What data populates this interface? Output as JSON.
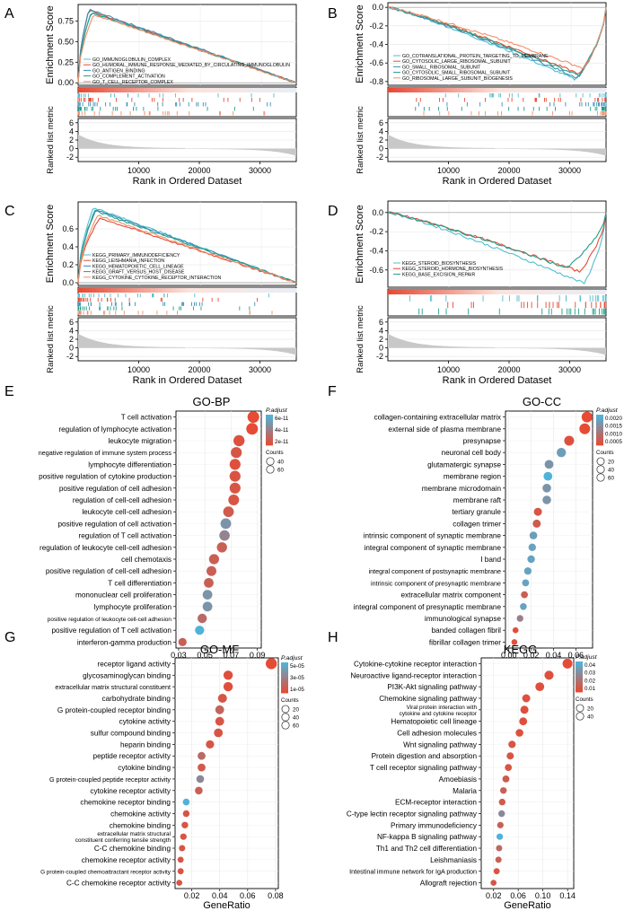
{
  "figure": {
    "panels": [
      "A",
      "B",
      "C",
      "D",
      "E",
      "F",
      "G",
      "H"
    ]
  },
  "gsea_axes": {
    "enrichment_label": "Enrichment Score",
    "ranked_label": "Ranked list metric",
    "x_label": "Rank in Ordered Dataset",
    "x_ticks": [
      "10000",
      "20000",
      "30000"
    ],
    "ranked_ticks": [
      "6",
      "4",
      "2",
      "0",
      "-2"
    ]
  },
  "colors": {
    "palette": [
      "#4fbfd0",
      "#e64b35",
      "#3a8fb7",
      "#1f9e89",
      "#f28e6b"
    ],
    "dot_low": "#e64b35",
    "dot_high": "#4fb3d9",
    "ranked_fill": "#c8c8c8"
  },
  "chart_data": [
    {
      "panel": "A",
      "type": "line",
      "title": "",
      "ylabel": "Enrichment Score",
      "xlabel": "Rank in Ordered Dataset",
      "xlim": [
        0,
        36000
      ],
      "ylim": [
        -0.03,
        0.95
      ],
      "y_ticks": [
        "0.00",
        "0.25",
        "0.50",
        "0.75"
      ],
      "series": [
        {
          "name": "GO_IMMUNOGLOBULIN_COMPLEX",
          "color": "#4fbfd0",
          "peak": 0.86,
          "peak_at": 0.06,
          "end": 0.0
        },
        {
          "name": "GO_HUMORAL_IMMUNE_RESPONSE_MEDIATED_BY_CIRCULATING_IMMUNOGLOBULIN",
          "color": "#e64b35",
          "peak": 0.88,
          "peak_at": 0.05,
          "end": 0.0
        },
        {
          "name": "GO_ANTIGEN_BINDING",
          "color": "#3a8fb7",
          "peak": 0.89,
          "peak_at": 0.05,
          "end": 0.0
        },
        {
          "name": "GO_COMPLEMENT_ACTIVATION",
          "color": "#1f9e89",
          "peak": 0.85,
          "peak_at": 0.06,
          "end": 0.0
        },
        {
          "name": "GO_T_CELL_RECEPTOR_COMPLEX",
          "color": "#f28e6b",
          "peak": 0.83,
          "peak_at": 0.07,
          "end": 0.0
        }
      ]
    },
    {
      "panel": "B",
      "type": "line",
      "ylabel": "Enrichment Score",
      "xlabel": "Rank in Ordered Dataset",
      "xlim": [
        0,
        36000
      ],
      "ylim": [
        -0.84,
        0.05
      ],
      "y_ticks": [
        "0.0",
        "-0.2",
        "-0.4",
        "-0.6",
        "-0.8"
      ],
      "series": [
        {
          "name": "GO_COTRANSLATIONAL_PROTEIN_TARGETING_TO_MEMBRANE",
          "color": "#4fbfd0",
          "peak": -0.78,
          "peak_at": 0.86,
          "end": 0.0
        },
        {
          "name": "GO_CYTOSOLIC_LARGE_RIBOSOMAL_SUBUNIT",
          "color": "#e64b35",
          "peak": -0.72,
          "peak_at": 0.88,
          "end": 0.0
        },
        {
          "name": "GO_SMALL_RIBOSOMAL_SUBUNIT",
          "color": "#3a8fb7",
          "peak": -0.76,
          "peak_at": 0.87,
          "end": 0.0
        },
        {
          "name": "GO_CYTOSOLIC_SMALL_RIBOSOMAL_SUBUNIT",
          "color": "#1f9e89",
          "peak": -0.74,
          "peak_at": 0.88,
          "end": 0.0
        },
        {
          "name": "GO_RIBOSOMAL_LARGE_SUBUNIT_BIOGENESIS",
          "color": "#f28e6b",
          "peak": -0.66,
          "peak_at": 0.9,
          "end": 0.0
        }
      ]
    },
    {
      "panel": "C",
      "type": "line",
      "ylabel": "Enrichment Score",
      "xlabel": "Rank in Ordered Dataset",
      "xlim": [
        0,
        36000
      ],
      "ylim": [
        -0.03,
        0.9
      ],
      "y_ticks": [
        "0.0",
        "0.2",
        "0.4",
        "0.6"
      ],
      "series": [
        {
          "name": "KEGG_PRIMARY_IMMUNODEFICIENCY",
          "color": "#4fbfd0",
          "peak": 0.84,
          "peak_at": 0.07,
          "end": 0.0
        },
        {
          "name": "KEGG_LEISHMANIA_INFECTION",
          "color": "#e64b35",
          "peak": 0.72,
          "peak_at": 0.1,
          "end": 0.0
        },
        {
          "name": "KEGG_HEMATOPOIETIC_CELL_LINEAGE",
          "color": "#3a8fb7",
          "peak": 0.82,
          "peak_at": 0.08,
          "end": 0.0
        },
        {
          "name": "KEGG_GRAFT_VERSUS_HOST_DISEASE",
          "color": "#1f9e89",
          "peak": 0.8,
          "peak_at": 0.08,
          "end": 0.0
        },
        {
          "name": "KEGG_CYTOKINE_CYTOKINE_RECEPTOR_INTERACTION",
          "color": "#f28e6b",
          "peak": 0.75,
          "peak_at": 0.09,
          "end": 0.0
        }
      ]
    },
    {
      "panel": "D",
      "type": "line",
      "ylabel": "Enrichment Score",
      "xlabel": "Rank in Ordered Dataset",
      "xlim": [
        0,
        36000
      ],
      "ylim": [
        -0.78,
        0.12
      ],
      "y_ticks": [
        "0.0",
        "-0.2",
        "-0.4",
        "-0.6"
      ],
      "series": [
        {
          "name": "KEGG_STEROID_BIOSYNTHESIS",
          "color": "#4fbfd0",
          "peak": -0.74,
          "peak_at": 0.9,
          "end": 0.0
        },
        {
          "name": "KEGG_STEROID_HORMONE_BIOSYNTHESIS",
          "color": "#e64b35",
          "peak": -0.62,
          "peak_at": 0.88,
          "end": 0.0
        },
        {
          "name": "KEGG_BASE_EXCISION_REPAIR",
          "color": "#1f9e89",
          "peak": -0.58,
          "peak_at": 0.82,
          "end": 0.0
        }
      ]
    },
    {
      "panel": "E",
      "type": "scatter",
      "title": "GO-BP",
      "xlabel": "GeneRatio",
      "xlim": [
        0.028,
        0.093
      ],
      "x_ticks": [
        "0.03",
        "0.05",
        "0.07",
        "0.09"
      ],
      "x_tick_values": [
        0.03,
        0.05,
        0.07,
        0.09
      ],
      "legend_title": "P.adjust",
      "color_ticks": [
        "6e-11",
        "4e-11",
        "2e-11"
      ],
      "size_title": "Counts",
      "size_ticks": [
        "40",
        "60"
      ],
      "terms": [
        {
          "label": "T cell activation",
          "ratio": 0.087,
          "count": 80,
          "padj": 0.0
        },
        {
          "label": "regulation of lymphocyte activation",
          "ratio": 0.086,
          "count": 78,
          "padj": 0.0
        },
        {
          "label": "leukocyte migration",
          "ratio": 0.076,
          "count": 70,
          "padj": 0.05
        },
        {
          "label": "negative regulation of immune system process",
          "ratio": 0.074,
          "count": 66,
          "padj": 0.1
        },
        {
          "label": "lymphocyte differentiation",
          "ratio": 0.073,
          "count": 66,
          "padj": 0.05
        },
        {
          "label": "positive regulation of cytokine production",
          "ratio": 0.073,
          "count": 66,
          "padj": 0.08
        },
        {
          "label": "positive regulation of cell adhesion",
          "ratio": 0.073,
          "count": 66,
          "padj": 0.1
        },
        {
          "label": "regulation of cell-cell adhesion",
          "ratio": 0.072,
          "count": 65,
          "padj": 0.1
        },
        {
          "label": "leukocyte cell-cell adhesion",
          "ratio": 0.068,
          "count": 62,
          "padj": 0.15
        },
        {
          "label": "positive regulation of cell activation",
          "ratio": 0.066,
          "count": 60,
          "padj": 0.7
        },
        {
          "label": "regulation of T cell activation",
          "ratio": 0.065,
          "count": 58,
          "padj": 0.55
        },
        {
          "label": "regulation of leukocyte cell-cell adhesion",
          "ratio": 0.063,
          "count": 56,
          "padj": 0.2
        },
        {
          "label": "cell chemotaxis",
          "ratio": 0.057,
          "count": 52,
          "padj": 0.2
        },
        {
          "label": "positive regulation of cell-cell adhesion",
          "ratio": 0.055,
          "count": 50,
          "padj": 0.2
        },
        {
          "label": "T cell differentiation",
          "ratio": 0.053,
          "count": 48,
          "padj": 0.2
        },
        {
          "label": "mononuclear cell proliferation",
          "ratio": 0.052,
          "count": 47,
          "padj": 0.7
        },
        {
          "label": "lymphocyte proliferation",
          "ratio": 0.052,
          "count": 47,
          "padj": 0.7
        },
        {
          "label": "positive regulation of leukocyte cell-cell adhesion",
          "ratio": 0.048,
          "count": 42,
          "padj": 0.3
        },
        {
          "label": "positive regulation of T cell activation",
          "ratio": 0.046,
          "count": 40,
          "padj": 1.0
        },
        {
          "label": "interferon-gamma production",
          "ratio": 0.033,
          "count": 30,
          "padj": 0.2
        }
      ]
    },
    {
      "panel": "F",
      "type": "scatter",
      "title": "GO-CC",
      "xlabel": "GeneRatio",
      "xlim": [
        -0.003,
        0.075
      ],
      "x_ticks": [
        "0.00",
        "0.02",
        "0.04",
        "0.06"
      ],
      "x_tick_values": [
        0.0,
        0.02,
        0.04,
        0.06
      ],
      "legend_title": "P.adjust",
      "color_ticks": [
        "0.0020",
        "0.0015",
        "0.0010",
        "0.0005"
      ],
      "size_title": "Counts",
      "size_ticks": [
        "20",
        "40",
        "60"
      ],
      "terms": [
        {
          "label": "collagen-containing extracellular matrix",
          "ratio": 0.07,
          "count": 65,
          "padj": 0.0
        },
        {
          "label": "external side of plasma membrane",
          "ratio": 0.068,
          "count": 63,
          "padj": 0.0
        },
        {
          "label": "presynapse",
          "ratio": 0.054,
          "count": 50,
          "padj": 0.05
        },
        {
          "label": "neuronal cell body",
          "ratio": 0.047,
          "count": 44,
          "padj": 0.8
        },
        {
          "label": "glutamatergic synapse",
          "ratio": 0.036,
          "count": 36,
          "padj": 0.7
        },
        {
          "label": "membrane region",
          "ratio": 0.035,
          "count": 36,
          "padj": 1.0
        },
        {
          "label": "membrane microdomain",
          "ratio": 0.034,
          "count": 34,
          "padj": 0.7
        },
        {
          "label": "membrane raft",
          "ratio": 0.034,
          "count": 34,
          "padj": 0.7
        },
        {
          "label": "tertiary granule",
          "ratio": 0.026,
          "count": 28,
          "padj": 0.1
        },
        {
          "label": "collagen trimer",
          "ratio": 0.025,
          "count": 28,
          "padj": 0.15
        },
        {
          "label": "intrinsic component of synaptic membrane",
          "ratio": 0.022,
          "count": 24,
          "padj": 0.8
        },
        {
          "label": "integral component of synaptic membrane",
          "ratio": 0.021,
          "count": 23,
          "padj": 0.85
        },
        {
          "label": "I band",
          "ratio": 0.02,
          "count": 22,
          "padj": 0.85
        },
        {
          "label": "integral component of postsynaptic membrane",
          "ratio": 0.017,
          "count": 20,
          "padj": 0.85
        },
        {
          "label": "intrinsic component of presynaptic membrane",
          "ratio": 0.015,
          "count": 18,
          "padj": 0.85
        },
        {
          "label": "extracellular matrix component",
          "ratio": 0.014,
          "count": 17,
          "padj": 0.2
        },
        {
          "label": "integral component of presynaptic membrane",
          "ratio": 0.013,
          "count": 16,
          "padj": 0.85
        },
        {
          "label": "immunological synapse",
          "ratio": 0.01,
          "count": 14,
          "padj": 0.5
        },
        {
          "label": "banded collagen fibril",
          "ratio": 0.006,
          "count": 10,
          "padj": 0.05
        },
        {
          "label": "fibrillar collagen trimer",
          "ratio": 0.005,
          "count": 9,
          "padj": 0.05
        }
      ]
    },
    {
      "panel": "G",
      "type": "scatter",
      "title": "GO-MF",
      "xlabel": "GeneRatio",
      "xlim": [
        0.008,
        0.082
      ],
      "x_ticks": [
        "0.02",
        "0.04",
        "0.06",
        "0.08"
      ],
      "x_tick_values": [
        0.02,
        0.04,
        0.06,
        0.08
      ],
      "legend_title": "P.adjust",
      "color_ticks": [
        "5e-05",
        "3e-05",
        "1e-05"
      ],
      "size_title": "Counts",
      "size_ticks": [
        "20",
        "40",
        "60"
      ],
      "terms": [
        {
          "label": "receptor ligand activity",
          "ratio": 0.077,
          "count": 70,
          "padj": 0.0
        },
        {
          "label": "glycosaminoglycan binding",
          "ratio": 0.046,
          "count": 42,
          "padj": 0.05
        },
        {
          "label": "extracellular matrix structural constituent",
          "ratio": 0.046,
          "count": 42,
          "padj": 0.05
        },
        {
          "label": "carbohydrate binding",
          "ratio": 0.042,
          "count": 38,
          "padj": 0.1
        },
        {
          "label": "G protein-coupled receptor binding",
          "ratio": 0.04,
          "count": 36,
          "padj": 0.25
        },
        {
          "label": "cytokine activity",
          "ratio": 0.04,
          "count": 36,
          "padj": 0.1
        },
        {
          "label": "sulfur compound binding",
          "ratio": 0.039,
          "count": 35,
          "padj": 0.1
        },
        {
          "label": "heparin binding",
          "ratio": 0.033,
          "count": 30,
          "padj": 0.1
        },
        {
          "label": "peptide receptor activity",
          "ratio": 0.027,
          "count": 26,
          "padj": 0.3
        },
        {
          "label": "cytokine binding",
          "ratio": 0.027,
          "count": 26,
          "padj": 0.15
        },
        {
          "label": "G protein-coupled peptide receptor activity",
          "ratio": 0.026,
          "count": 25,
          "padj": 0.6
        },
        {
          "label": "cytokine receptor activity",
          "ratio": 0.025,
          "count": 24,
          "padj": 0.2
        },
        {
          "label": "chemokine receptor binding",
          "ratio": 0.016,
          "count": 16,
          "padj": 1.0
        },
        {
          "label": "chemokine activity",
          "ratio": 0.016,
          "count": 15,
          "padj": 0.1
        },
        {
          "label": "chemokine binding",
          "ratio": 0.015,
          "count": 14,
          "padj": 0.1
        },
        {
          "label": "extracellular matrix structural constituent conferring tensile strength",
          "ratio": 0.014,
          "count": 13,
          "padj": 0.1
        },
        {
          "label": "C-C chemokine binding",
          "ratio": 0.013,
          "count": 12,
          "padj": 0.1
        },
        {
          "label": "chemokine receptor activity",
          "ratio": 0.012,
          "count": 11,
          "padj": 0.1
        },
        {
          "label": "G protein-coupled chemoattractant receptor activity",
          "ratio": 0.012,
          "count": 11,
          "padj": 0.1
        },
        {
          "label": "C-C chemokine receptor activity",
          "ratio": 0.011,
          "count": 10,
          "padj": 0.1
        }
      ]
    },
    {
      "panel": "H",
      "type": "scatter",
      "title": "KEGG",
      "xlabel": "GeneRatio",
      "xlim": [
        0.0,
        0.15
      ],
      "x_ticks": [
        "0.02",
        "0.06",
        "0.10",
        "0.14"
      ],
      "x_tick_values": [
        0.02,
        0.06,
        0.1,
        0.14
      ],
      "legend_title": "P.adjust",
      "color_ticks": [
        "0.04",
        "0.03",
        "0.02",
        "0.01"
      ],
      "size_title": "Counts",
      "size_ticks": [
        "20",
        "40"
      ],
      "terms": [
        {
          "label": "Cytokine-cytokine receptor interaction",
          "ratio": 0.14,
          "count": 50,
          "padj": 0.0
        },
        {
          "label": "Neuroactive ligand-receptor interaction",
          "ratio": 0.11,
          "count": 40,
          "padj": 0.05
        },
        {
          "label": "PI3K-Akt signaling pathway",
          "ratio": 0.095,
          "count": 35,
          "padj": 0.05
        },
        {
          "label": "Chemokine signaling pathway",
          "ratio": 0.073,
          "count": 28,
          "padj": 0.05
        },
        {
          "label": "Viral protein interaction with cytokine and cytokine receptor",
          "ratio": 0.07,
          "count": 27,
          "padj": 0.05
        },
        {
          "label": "Hematopoietic cell lineage",
          "ratio": 0.068,
          "count": 26,
          "padj": 0.05
        },
        {
          "label": "Cell adhesion molecules",
          "ratio": 0.062,
          "count": 24,
          "padj": 0.05
        },
        {
          "label": "Wnt signaling pathway",
          "ratio": 0.05,
          "count": 20,
          "padj": 0.1
        },
        {
          "label": "Protein digestion and absorption",
          "ratio": 0.047,
          "count": 19,
          "padj": 0.1
        },
        {
          "label": "T cell receptor signaling pathway",
          "ratio": 0.044,
          "count": 18,
          "padj": 0.1
        },
        {
          "label": "Amoebiasis",
          "ratio": 0.04,
          "count": 17,
          "padj": 0.15
        },
        {
          "label": "Malaria",
          "ratio": 0.036,
          "count": 15,
          "padj": 0.2
        },
        {
          "label": "ECM-receptor interaction",
          "ratio": 0.034,
          "count": 14,
          "padj": 0.15
        },
        {
          "label": "C-type lectin receptor signaling pathway",
          "ratio": 0.033,
          "count": 14,
          "padj": 0.6
        },
        {
          "label": "Primary immunodeficiency",
          "ratio": 0.031,
          "count": 13,
          "padj": 0.2
        },
        {
          "label": "NF-kappa B signaling pathway",
          "ratio": 0.03,
          "count": 13,
          "padj": 1.0
        },
        {
          "label": "Th1 and Th2 cell differentiation",
          "ratio": 0.029,
          "count": 12,
          "padj": 0.3
        },
        {
          "label": "Leishmaniasis",
          "ratio": 0.028,
          "count": 12,
          "padj": 0.2
        },
        {
          "label": "Intestinal immune network for IgA production",
          "ratio": 0.025,
          "count": 11,
          "padj": 0.1
        },
        {
          "label": "Allograft rejection",
          "ratio": 0.02,
          "count": 9,
          "padj": 0.1
        }
      ]
    }
  ]
}
